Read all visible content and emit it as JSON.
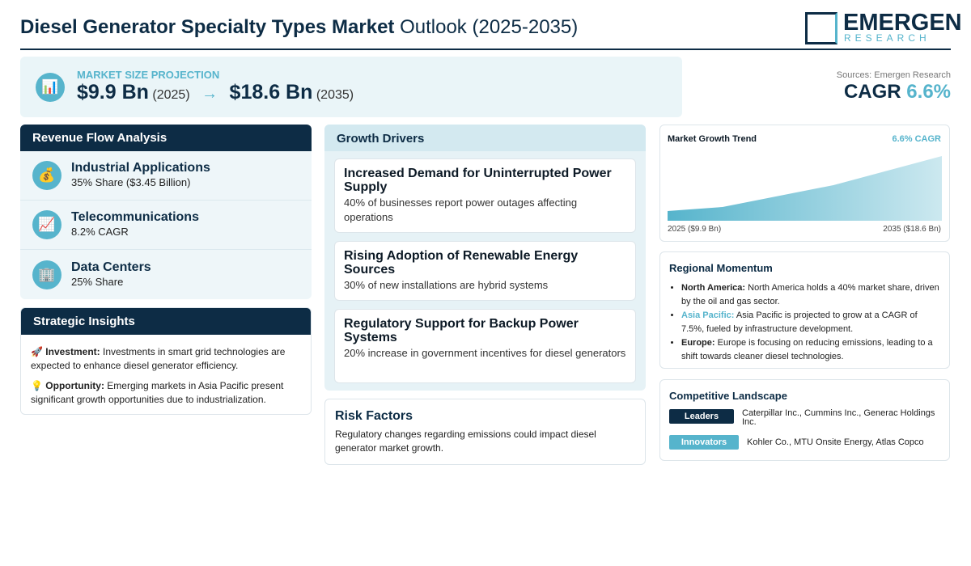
{
  "header": {
    "title_bold": "Diesel Generator Specialty Types Market",
    "title_rest": "Outlook (2025-2035)",
    "logo_main": "EMERGEN",
    "logo_sub": "RESEARCH"
  },
  "projection": {
    "label": "MARKET SIZE PROJECTION",
    "icon": "📊",
    "start_value": "$9.9 Bn",
    "start_year": "(2025)",
    "arrow": "→",
    "end_value": "$18.6 Bn",
    "end_year": "(2035)",
    "source": "Sources: Emergen Research",
    "cagr_label": "CAGR",
    "cagr_value": "6.6%"
  },
  "revenue_flow": {
    "title": "Revenue Flow Analysis",
    "items": [
      {
        "icon": "💰",
        "name": "Industrial Applications",
        "detail": "35% Share ($3.45 Billion)"
      },
      {
        "icon": "📈",
        "name": "Telecommunications",
        "detail": "8.2% CAGR"
      },
      {
        "icon": "🏢",
        "name": "Data Centers",
        "detail": "25% Share"
      }
    ]
  },
  "strategic_insights": {
    "title": "Strategic Insights",
    "items": [
      {
        "icon": "🚀",
        "label": "Investment:",
        "text": "Investments in smart grid technologies are expected to enhance diesel generator efficiency."
      },
      {
        "icon": "💡",
        "label": "Opportunity:",
        "text": "Emerging markets in Asia Pacific present significant growth opportunities due to industrialization."
      }
    ]
  },
  "growth_drivers": {
    "title": "Growth Drivers",
    "items": [
      {
        "title": "Increased Demand for Uninterrupted Power Supply",
        "text": "40% of businesses report power outages affecting operations"
      },
      {
        "title": "Rising Adoption of Renewable Energy Sources",
        "text": "30% of new installations are hybrid systems"
      },
      {
        "title": "Regulatory Support for Backup Power Systems",
        "text": "20% increase in government incentives for diesel generators"
      }
    ]
  },
  "risk_factors": {
    "title": "Risk Factors",
    "text": "Regulatory changes regarding emissions could impact diesel generator market growth."
  },
  "market_trend": {
    "title": "Market Growth Trend",
    "badge": "6.6% CAGR",
    "start_label": "2025 ($9.9 Bn)",
    "end_label": "2035 ($18.6 Bn)"
  },
  "regional_momentum": {
    "title": "Regional Momentum",
    "items": [
      {
        "region": "North America:",
        "text": "North America holds a 40% market share, driven by the oil and gas sector."
      },
      {
        "region": "Asia Pacific:",
        "text": "Asia Pacific is projected to grow at a CAGR of 7.5%, fueled by infrastructure development."
      },
      {
        "region": "Europe:",
        "text": "Europe is focusing on reducing emissions, leading to a shift towards cleaner diesel technologies."
      }
    ]
  },
  "competitive_landscape": {
    "title": "Competitive Landscape",
    "rows": [
      {
        "tag": "Leaders",
        "text": "Caterpillar Inc., Cummins Inc., Generac Holdings Inc."
      },
      {
        "tag": "Innovators",
        "text": "Kohler Co., MTU Onsite Energy, Atlas Copco"
      }
    ]
  }
}
